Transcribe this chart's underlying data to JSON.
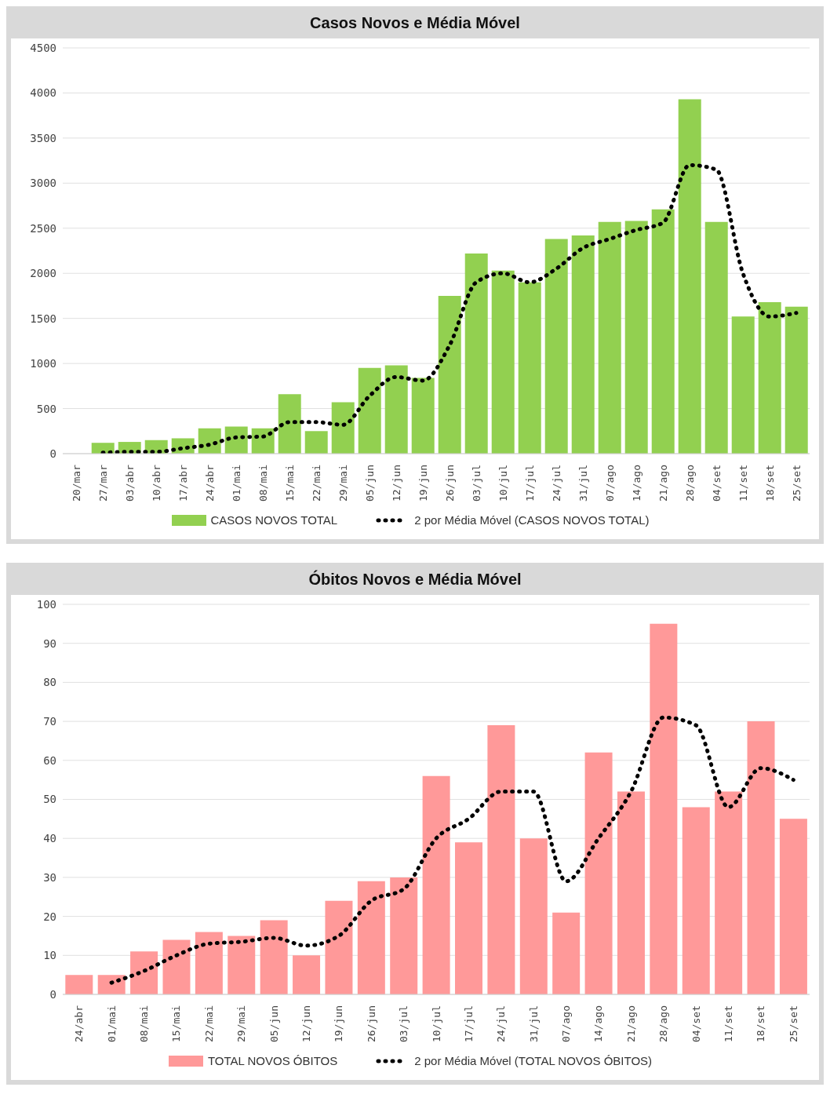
{
  "chart_data": [
    {
      "type": "bar",
      "title": "Casos Novos e Média Móvel",
      "categories": [
        "20/mar",
        "27/mar",
        "03/abr",
        "10/abr",
        "17/abr",
        "24/abr",
        "01/mai",
        "08/mai",
        "15/mai",
        "22/mai",
        "29/mai",
        "05/jun",
        "12/jun",
        "19/jun",
        "26/jun",
        "03/jul",
        "10/jul",
        "17/jul",
        "24/jul",
        "31/jul",
        "07/ago",
        "14/ago",
        "21/ago",
        "28/ago",
        "04/set",
        "11/set",
        "18/set",
        "25/set"
      ],
      "ylim": [
        0,
        4500
      ],
      "yticks": [
        0,
        500,
        1000,
        1500,
        2000,
        2500,
        3000,
        3500,
        4000,
        4500
      ],
      "grid": "y",
      "legend": "bottom",
      "series": [
        {
          "name": "CASOS NOVOS TOTAL",
          "color": "#92d050",
          "values": [
            0,
            120,
            130,
            150,
            170,
            280,
            300,
            280,
            660,
            250,
            570,
            950,
            980,
            840,
            1750,
            2220,
            2030,
            1900,
            2380,
            2420,
            2570,
            2580,
            2710,
            3930,
            2570,
            1520,
            1680,
            1630
          ]
        },
        {
          "name": "2 por Média Móvel (CASOS NOVOS TOTAL)",
          "type": "line",
          "color": "#000000",
          "line_style": "dotted",
          "marker": "none",
          "values": [
            null,
            10,
            20,
            20,
            60,
            100,
            180,
            190,
            350,
            350,
            320,
            640,
            850,
            810,
            1200,
            1900,
            2000,
            1900,
            2050,
            2280,
            2380,
            2480,
            2560,
            3200,
            3150,
            2000,
            1520,
            1560
          ]
        }
      ]
    },
    {
      "type": "bar",
      "title": "Óbitos Novos e Média Móvel",
      "categories": [
        "24/abr",
        "01/mai",
        "08/mai",
        "15/mai",
        "22/mai",
        "29/mai",
        "05/jun",
        "12/jun",
        "19/jun",
        "26/jun",
        "03/jul",
        "10/jul",
        "17/jul",
        "24/jul",
        "31/jul",
        "07/ago",
        "14/ago",
        "21/ago",
        "28/ago",
        "04/set",
        "11/set",
        "18/set",
        "25/set"
      ],
      "ylim": [
        0,
        100
      ],
      "yticks": [
        0,
        10,
        20,
        30,
        40,
        50,
        60,
        70,
        80,
        90,
        100
      ],
      "grid": "y",
      "legend": "bottom",
      "series": [
        {
          "name": "TOTAL NOVOS ÓBITOS",
          "color": "#ff9999",
          "values": [
            5,
            5,
            11,
            14,
            16,
            15,
            19,
            10,
            24,
            29,
            30,
            56,
            39,
            69,
            40,
            21,
            62,
            52,
            95,
            48,
            52,
            70,
            45
          ]
        },
        {
          "name": "2 por Média Móvel (TOTAL NOVOS ÓBITOS)",
          "type": "line",
          "color": "#000000",
          "line_style": "dotted",
          "marker": "none",
          "values": [
            null,
            3,
            6,
            10,
            13,
            13.5,
            14.5,
            12.5,
            15,
            24,
            27,
            40,
            45,
            52,
            52,
            29,
            40,
            52,
            71,
            69,
            48,
            58,
            55
          ]
        }
      ]
    }
  ]
}
